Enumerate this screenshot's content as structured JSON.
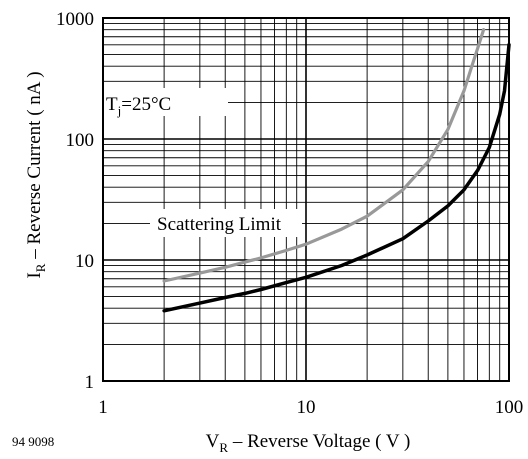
{
  "chart_data": {
    "type": "line",
    "xlabel": "V",
    "xlabel_sub": "R",
    "xlabel_rest": " – Reverse Voltage ( V )",
    "ylabel": "I",
    "ylabel_sub": "R",
    "ylabel_rest": " – Reverse Current ( nA )",
    "x_scale": "log",
    "y_scale": "log",
    "xlim": [
      1,
      100
    ],
    "ylim": [
      1,
      1000
    ],
    "x_ticks": [
      {
        "value": 1,
        "label": "1"
      },
      {
        "value": 10,
        "label": "10"
      },
      {
        "value": 100,
        "label": "100"
      }
    ],
    "y_ticks": [
      {
        "value": 1,
        "label": "1"
      },
      {
        "value": 10,
        "label": "10"
      },
      {
        "value": 100,
        "label": "100"
      },
      {
        "value": 1000,
        "label": "1000"
      }
    ],
    "grid": true,
    "annotations": {
      "temperature_main": "T",
      "temperature_sub": "j",
      "temperature_rest": "=25°C",
      "scattering": "Scattering Limit",
      "figure_id": "94 9098"
    },
    "series": [
      {
        "color": "#000000",
        "x": [
          2,
          3,
          4,
          5,
          6,
          8,
          10,
          15,
          20,
          30,
          40,
          50,
          60,
          70,
          80,
          90,
          95,
          100
        ],
        "y": [
          3.8,
          4.4,
          4.9,
          5.3,
          5.7,
          6.5,
          7.2,
          9.0,
          11,
          15,
          21,
          28,
          38,
          55,
          85,
          160,
          250,
          600
        ]
      },
      {
        "color": "#999999",
        "x": [
          2,
          3,
          4,
          5,
          6,
          8,
          10,
          15,
          20,
          30,
          40,
          50,
          60,
          65,
          70,
          75
        ],
        "y": [
          6.7,
          7.8,
          8.7,
          9.6,
          10.4,
          12,
          13.5,
          18,
          23,
          38,
          65,
          120,
          250,
          380,
          560,
          800
        ]
      }
    ]
  }
}
